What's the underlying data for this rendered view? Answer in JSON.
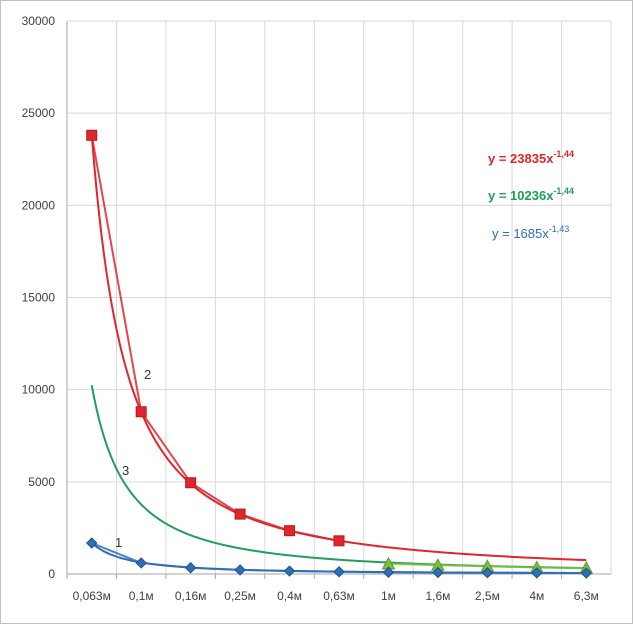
{
  "chart_data": {
    "type": "scatter",
    "categories": [
      "0,063м",
      "0,1м",
      "0,16м",
      "0,25м",
      "0,4м",
      "0,63м",
      "1м",
      "1,6м",
      "2,5м",
      "4м",
      "6,3м"
    ],
    "ylim": [
      0,
      30000
    ],
    "y_ticks": [
      "0",
      "5000",
      "10000",
      "15000",
      "20000",
      "25000",
      "30000"
    ],
    "grid": "vertical and horizontal",
    "series": [
      {
        "label": "2",
        "color": "#e0262c",
        "marker": "square",
        "values": [
          23800,
          8800,
          4950,
          3250,
          2350,
          1800,
          null,
          null,
          null,
          null,
          null
        ]
      },
      {
        "label": "3",
        "color": "#7fbf3f",
        "marker": "triangle",
        "values": [
          null,
          null,
          null,
          null,
          null,
          null,
          550,
          480,
          420,
          350,
          320
        ]
      },
      {
        "label": "1",
        "color": "#2e6fba",
        "marker": "diamond",
        "values": [
          1680,
          600,
          340,
          220,
          160,
          120,
          95,
          80,
          70,
          60,
          50
        ]
      }
    ],
    "trendlines": [
      {
        "label": "2",
        "equation_main": "y = 23835x",
        "equation_exp": "-1,44",
        "color": "#e0262c",
        "a": 23835,
        "b": -1.44,
        "x_from": 1,
        "x_to": 11
      },
      {
        "label": "3",
        "equation_main": "y = 10236x",
        "equation_exp": "-1,44",
        "color": "#1fa05a",
        "a": 10236,
        "b": -1.44,
        "x_from": 1,
        "x_to": 11
      },
      {
        "label": "1",
        "equation_main": "y = 1685x",
        "equation_exp": "-1,43",
        "color": "#2e6fba",
        "a": 1685,
        "b": -1.43,
        "x_from": 1,
        "x_to": 11
      }
    ]
  }
}
